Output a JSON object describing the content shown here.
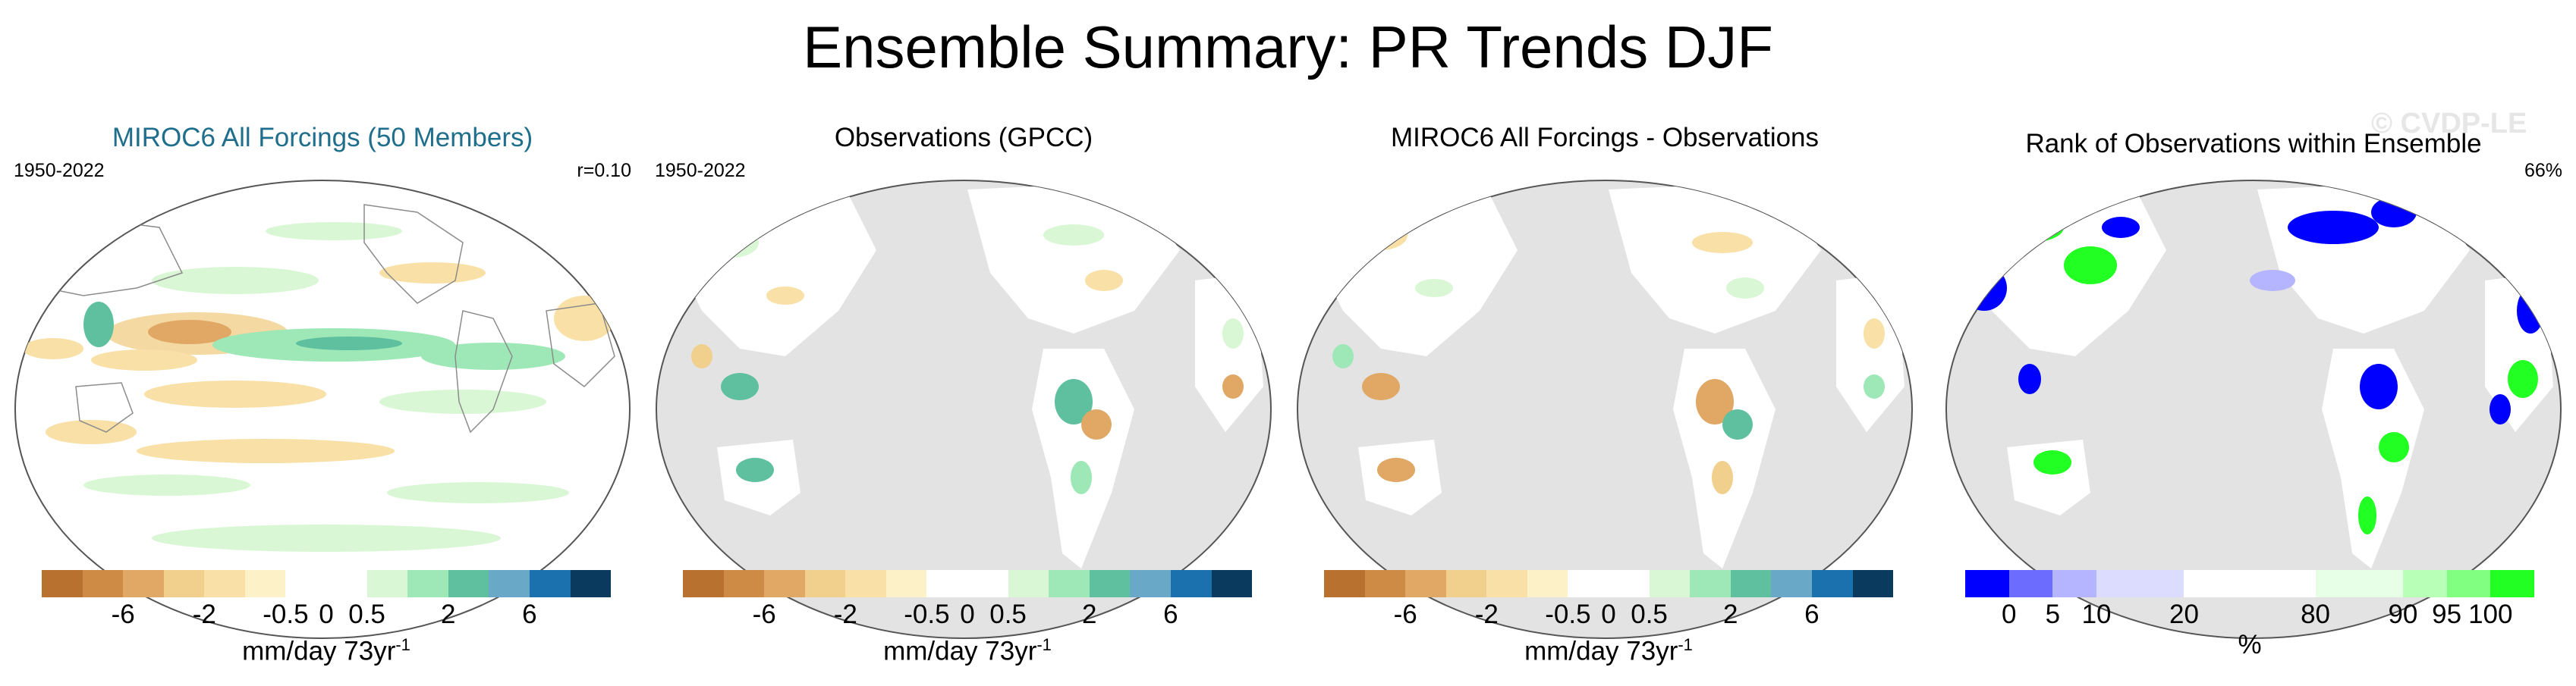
{
  "title": "Ensemble Summary: PR Trends DJF",
  "watermark": "© CVDP-LE",
  "colors": {
    "land_mask": "#e3e3e3",
    "coastline": "#8c8c8c",
    "brown_scale": [
      "#b8712f",
      "#cd8b45",
      "#e0a765",
      "#f1cf8c",
      "#f8e0a6",
      "#fdf1c8",
      "#ffffff",
      "#ffffff",
      "#d9f7d4",
      "#9de8b6",
      "#5fc0a0",
      "#6aa8c8",
      "#1a71ad",
      "#0a3a5e"
    ],
    "rank_scale": [
      "#0000ff",
      "#6c6cff",
      "#b4b4ff",
      "#dcdcff",
      "#dcdcff",
      "#ffffff",
      "#ffffff",
      "#ffffff",
      "#e6ffe6",
      "#e6ffe6",
      "#b8ffb8",
      "#80ff80",
      "#22ff22"
    ]
  },
  "panels": [
    {
      "title": "MIROC6 All Forcings (50 Members)",
      "left_label": "1950-2022",
      "right_label": "r=0.10",
      "colorbar": {
        "ticks": [
          "-6",
          "-2",
          "-0.5",
          "0",
          "0.5",
          "2",
          "6"
        ],
        "units": "mm/day 73yr",
        "units_exp": "-1"
      }
    },
    {
      "title": "Observations (GPCC)",
      "left_label": "1950-2022",
      "right_label": "",
      "colorbar": {
        "ticks": [
          "-6",
          "-2",
          "-0.5",
          "0",
          "0.5",
          "2",
          "6"
        ],
        "units": "mm/day 73yr",
        "units_exp": "-1"
      }
    },
    {
      "title": "MIROC6 All Forcings - Observations",
      "left_label": "",
      "right_label": "",
      "colorbar": {
        "ticks": [
          "-6",
          "-2",
          "-0.5",
          "0",
          "0.5",
          "2",
          "6"
        ],
        "units": "mm/day 73yr",
        "units_exp": "-1"
      }
    },
    {
      "title": "Rank of Observations within Ensemble",
      "left_label": "",
      "right_label": "66%",
      "colorbar": {
        "ticks": [
          "0",
          "5",
          "10",
          "20",
          "80",
          "90",
          "95",
          "100"
        ],
        "units": "%",
        "units_exp": ""
      }
    }
  ]
}
